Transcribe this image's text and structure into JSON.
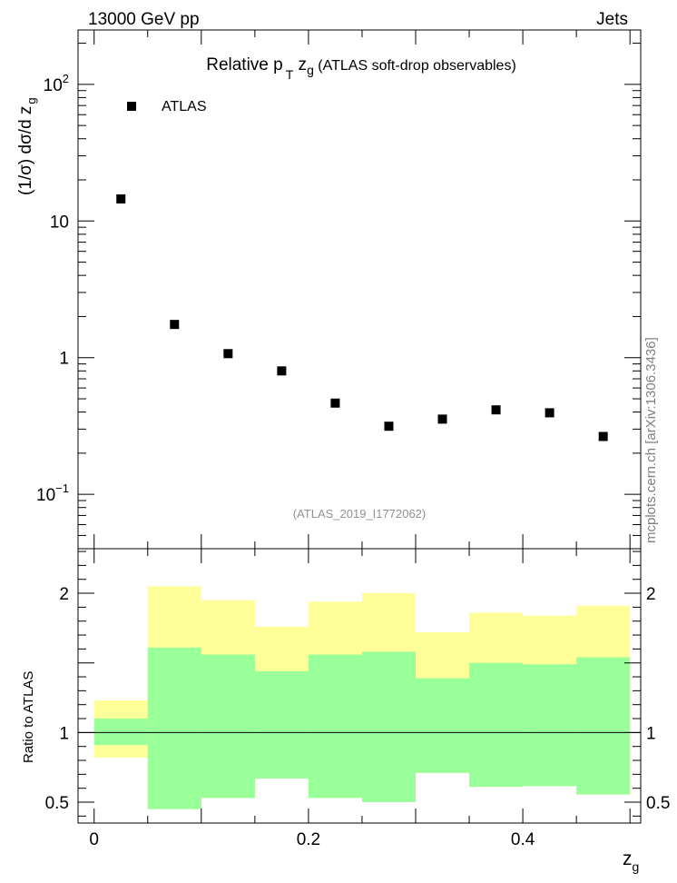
{
  "header": {
    "left": "13000 GeV pp",
    "right": "Jets"
  },
  "title": {
    "main": "Relative p",
    "sub_t": "T",
    "var": " z",
    "sub_g": "g",
    "rest": " (ATLAS soft-drop observables)"
  },
  "side_label": "mcplots.cern.ch [arXiv:1306.3436]",
  "analysis_id": "(ATLAS_2019_I1772062)",
  "colors": {
    "yellow": "#ffff99",
    "green": "#99ff99",
    "marker": "#000000"
  },
  "chart_data": [
    {
      "type": "scatter",
      "yscale": "log",
      "ylabel": {
        "main": "(1/σ) dσ/d z",
        "sub": "g"
      },
      "ylim": [
        0.04,
        250
      ],
      "xlim": [
        -0.015,
        0.51
      ],
      "y_ticks": [
        {
          "v": 0.1,
          "base": "10",
          "exp": "−1"
        },
        {
          "v": 1,
          "label": "1"
        },
        {
          "v": 10,
          "label": "10"
        },
        {
          "v": 100,
          "base": "10",
          "exp": "2"
        }
      ],
      "legend": {
        "entry": "ATLAS",
        "placement": "top-left"
      },
      "series": [
        {
          "name": "ATLAS",
          "x": [
            0.025,
            0.075,
            0.125,
            0.175,
            0.225,
            0.275,
            0.325,
            0.375,
            0.425,
            0.475
          ],
          "y": [
            14.5,
            1.75,
            1.07,
            0.8,
            0.465,
            0.315,
            0.355,
            0.415,
            0.395,
            0.265
          ]
        }
      ]
    },
    {
      "type": "area",
      "ylabel": "Ratio to ATLAS",
      "xlabel": {
        "main": "z",
        "sub": "g"
      },
      "ylim": [
        0.35,
        2.32
      ],
      "xlim": [
        -0.015,
        0.51
      ],
      "x_ticks": [
        {
          "v": 0,
          "label": "0"
        },
        {
          "v": 0.2,
          "label": "0.2"
        },
        {
          "v": 0.4,
          "label": "0.4"
        }
      ],
      "y_ticks": [
        {
          "v": 0.5,
          "label": "0.5"
        },
        {
          "v": 1,
          "label": "1"
        },
        {
          "v": 2,
          "label": "2"
        }
      ],
      "reference": 1,
      "bins": [
        0,
        0.05,
        0.1,
        0.15,
        0.2,
        0.25,
        0.3,
        0.35,
        0.4,
        0.45,
        0.5
      ],
      "bands": [
        {
          "name": "yellow",
          "lo": [
            0.82,
            0.45,
            0.53,
            0.67,
            0.53,
            0.5,
            0.71,
            0.61,
            0.615,
            0.555
          ],
          "hi": [
            1.23,
            2.05,
            1.95,
            1.76,
            1.94,
            2.0,
            1.72,
            1.86,
            1.84,
            1.91
          ]
        },
        {
          "name": "green",
          "lo": [
            0.91,
            0.45,
            0.53,
            0.67,
            0.53,
            0.5,
            0.71,
            0.61,
            0.615,
            0.555
          ],
          "hi": [
            1.1,
            1.61,
            1.56,
            1.44,
            1.56,
            1.58,
            1.39,
            1.5,
            1.49,
            1.54
          ]
        }
      ]
    }
  ]
}
